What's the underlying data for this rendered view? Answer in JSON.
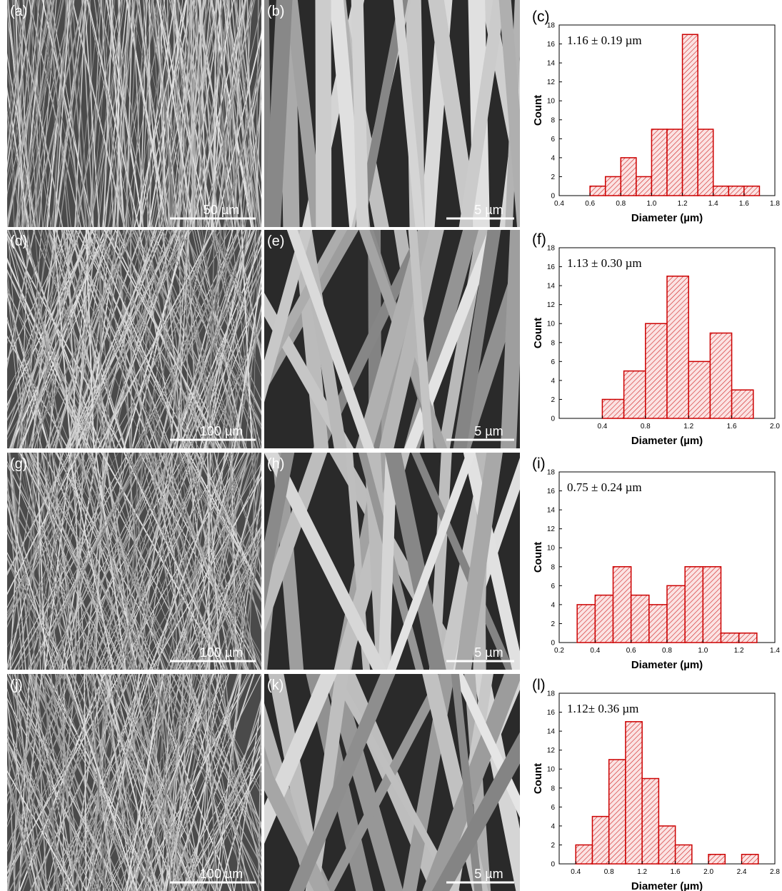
{
  "images": [
    {
      "label": "(a)",
      "scale_bar": "50 µm"
    },
    {
      "label": "(b)",
      "scale_bar": "5 µm"
    },
    {
      "label": "(d)",
      "scale_bar": "100 µm"
    },
    {
      "label": "(e)",
      "scale_bar": "5 µm"
    },
    {
      "label": "(g)",
      "scale_bar": "100 µm"
    },
    {
      "label": "(h)",
      "scale_bar": "5 µm"
    },
    {
      "label": "(j)",
      "scale_bar": "100 µm"
    },
    {
      "label": "(k)",
      "scale_bar": "5 µm"
    }
  ],
  "chart_data": [
    {
      "type": "histogram",
      "label": "(c)",
      "annotation": "1.16 ± 0.19 µm",
      "xlabel": "Diameter (µm)",
      "ylabel": "Count",
      "bins": [
        0.6,
        0.7,
        0.8,
        0.9,
        1.0,
        1.1,
        1.2,
        1.3,
        1.4,
        1.5,
        1.6,
        1.7
      ],
      "values": [
        1,
        2,
        4,
        2,
        7,
        7,
        17,
        7,
        1,
        1,
        1
      ],
      "color": "#cc0000",
      "xlim": [
        0.4,
        1.8
      ],
      "xticks": [
        0.4,
        0.6,
        0.8,
        {
          "value": 1,
          "label": "1.0"
        },
        1.2,
        1.4,
        1.6,
        1.8
      ],
      "ylim": [
        0,
        18
      ],
      "yticks": [
        0,
        2,
        4,
        6,
        8,
        10,
        12,
        14,
        16,
        18
      ]
    },
    {
      "type": "histogram",
      "label": "(f)",
      "annotation": "1.13 ± 0.30 µm",
      "xlabel": "Diameter (µm)",
      "ylabel": "Count",
      "bins": [
        0.4,
        0.6,
        0.8,
        1.0,
        1.2,
        1.4,
        1.6,
        1.8
      ],
      "values": [
        2,
        5,
        10,
        15,
        6,
        9,
        3
      ],
      "color": "#cc0000",
      "xlim": [
        0,
        2
      ],
      "xticks": [
        0.4,
        0.8,
        1.2,
        1.6,
        {
          "value": 2,
          "label": "2.0"
        }
      ],
      "ylim": [
        0,
        18
      ],
      "yticks": [
        0,
        2,
        4,
        6,
        8,
        10,
        12,
        14,
        16,
        18
      ]
    },
    {
      "type": "histogram",
      "label": "(i)",
      "annotation": "0.75 ± 0.24 µm",
      "xlabel": "Diameter (µm)",
      "ylabel": "Count",
      "bins": [
        0.3,
        0.4,
        0.5,
        0.6,
        0.7,
        0.8,
        0.9,
        1.0,
        1.1,
        1.2,
        1.3
      ],
      "values": [
        4,
        5,
        8,
        5,
        4,
        6,
        8,
        8,
        1,
        1
      ],
      "color": "#cc0000",
      "xlim": [
        0.2,
        1.4
      ],
      "xticks": [
        0.2,
        0.4,
        0.6,
        0.8,
        {
          "value": 1,
          "label": "1.0"
        },
        1.2,
        1.4
      ],
      "ylim": [
        0,
        18
      ],
      "yticks": [
        0,
        2,
        4,
        6,
        8,
        10,
        12,
        14,
        16,
        18
      ]
    },
    {
      "type": "histogram",
      "label": "(l)",
      "annotation": "1.12± 0.36 µm",
      "xlabel": "Diameter (µm)",
      "ylabel": "Count",
      "bins": [
        0.4,
        0.6,
        0.8,
        1.0,
        1.2,
        1.4,
        1.6,
        1.8,
        2.0,
        2.2,
        2.4,
        2.6
      ],
      "values": [
        2,
        5,
        11,
        15,
        9,
        4,
        2,
        0,
        1,
        0,
        1
      ],
      "color": "#cc0000",
      "xlim": [
        0.2,
        2.8
      ],
      "xticks": [
        0.4,
        0.8,
        1.2,
        1.6,
        {
          "value": 2,
          "label": "2.0"
        },
        2.4,
        2.8
      ],
      "ylim": [
        0,
        18
      ],
      "yticks": [
        0,
        2,
        4,
        6,
        8,
        10,
        12,
        14,
        16,
        18
      ]
    }
  ]
}
